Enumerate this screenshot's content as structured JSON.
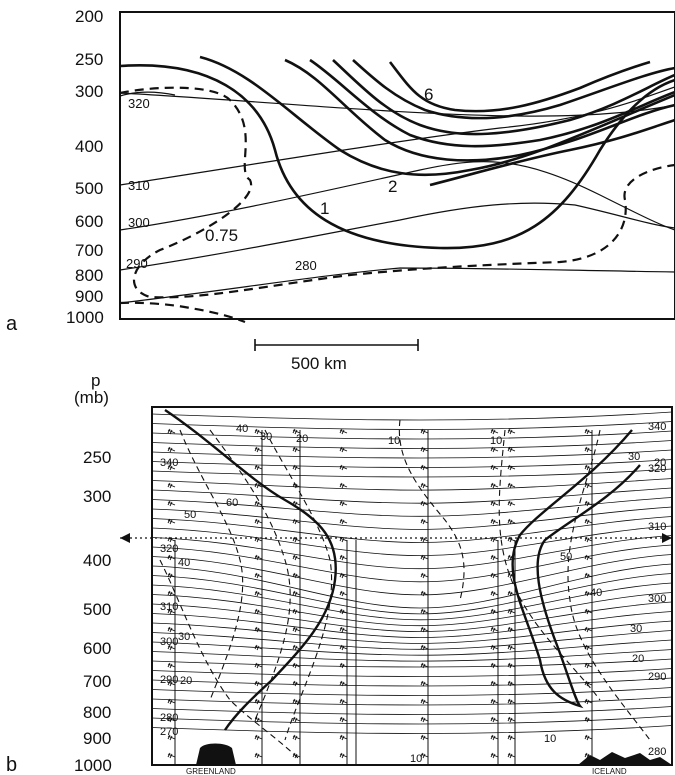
{
  "panel_a": {
    "label": "a",
    "pressure_ticks": [
      "200",
      "250",
      "300",
      "400",
      "500",
      "600",
      "700",
      "800",
      "900",
      "1000"
    ],
    "theta_labels": [
      "320",
      "310",
      "300",
      "290",
      "280"
    ],
    "pv_labels": [
      "6",
      "2",
      "1",
      "0.75"
    ],
    "scale_label": "500 km"
  },
  "panel_b": {
    "label": "b",
    "axis_title_line1": "p",
    "axis_title_line2": "(mb)",
    "pressure_ticks": [
      "250",
      "300",
      "400",
      "500",
      "600",
      "700",
      "800",
      "900",
      "1000"
    ],
    "theta_left": [
      "320",
      "310",
      "300",
      "290",
      "280",
      "270"
    ],
    "theta_right": [
      "340",
      "320",
      "310",
      "300",
      "290",
      "280"
    ],
    "theta_top_left": "340",
    "wind_labels": [
      "40",
      "30",
      "20",
      "60",
      "50",
      "40",
      "30",
      "20",
      "10",
      "10",
      "10",
      "20",
      "30",
      "40",
      "50",
      "10",
      "20",
      "30"
    ],
    "location_left": "GREENLAND",
    "location_right": "ICELAND"
  },
  "colors": {
    "ink": "#111111",
    "background": "#ffffff"
  }
}
